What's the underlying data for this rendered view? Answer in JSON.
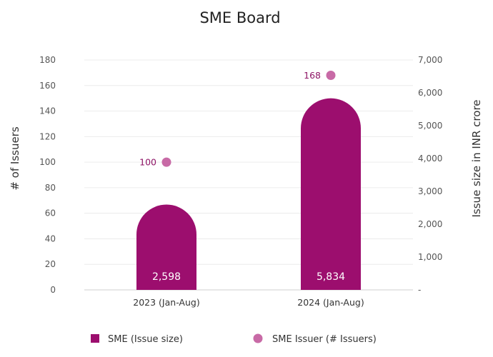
{
  "chart_data": {
    "type": "bar",
    "title": "SME Board",
    "categories": [
      "2023 (Jan-Aug)",
      "2024 (Jan-Aug)"
    ],
    "ylabel_left": "# of Issuers",
    "ylabel_right": "Issue size in INR crore",
    "yticks_left": [
      "0",
      "20",
      "40",
      "60",
      "80",
      "100",
      "120",
      "140",
      "160",
      "180"
    ],
    "yticks_right": [
      "-",
      "1,000",
      "2,000",
      "3,000",
      "4,000",
      "5,000",
      "6,000",
      "7,000"
    ],
    "ylim_left": [
      0,
      180
    ],
    "ylim_right": [
      0,
      7000
    ],
    "series": [
      {
        "name": "SME (Issue size)",
        "kind": "bar",
        "axis": "right",
        "values": [
          2598,
          5834
        ],
        "labels": [
          "2,598",
          "5,834"
        ],
        "color": "#9c0e6e"
      },
      {
        "name": "SME Issuer (# Issuers)",
        "kind": "scatter",
        "axis": "left",
        "values": [
          100,
          168
        ],
        "labels": [
          "100",
          "168"
        ],
        "color": "#c86aa6"
      }
    ],
    "grid": true,
    "legend_position": "bottom"
  }
}
